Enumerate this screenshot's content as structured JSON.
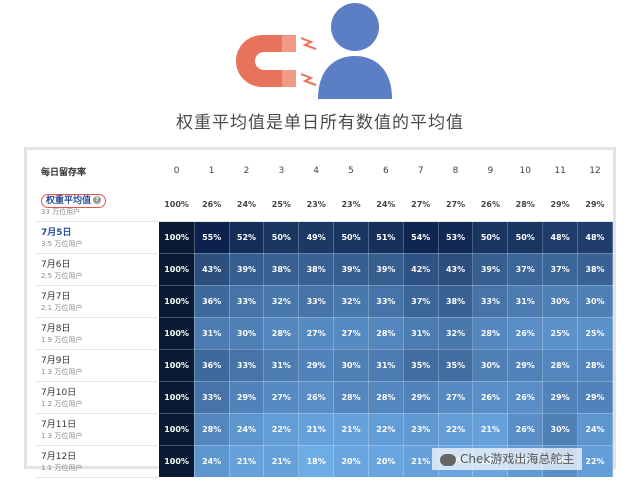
{
  "heading": "权重平均值是单日所有数值的平均值",
  "table": {
    "corner_label": "每日留存率",
    "columns": [
      "0",
      "1",
      "2",
      "3",
      "4",
      "5",
      "6",
      "7",
      "8",
      "9",
      "10",
      "11",
      "12"
    ],
    "average_row": {
      "label": "权重平均值",
      "sublabel": "33 万位用户",
      "values": [
        "100%",
        "26%",
        "24%",
        "25%",
        "23%",
        "23%",
        "24%",
        "27%",
        "27%",
        "26%",
        "28%",
        "29%",
        "29%"
      ]
    },
    "rows": [
      {
        "label": "7月5日",
        "sublabel": "3.5 万位用户",
        "values": [
          "100%",
          "55%",
          "52%",
          "50%",
          "49%",
          "50%",
          "51%",
          "54%",
          "53%",
          "50%",
          "50%",
          "48%",
          "48%"
        ]
      },
      {
        "label": "7月6日",
        "sublabel": "2.5 万位用户",
        "values": [
          "100%",
          "43%",
          "39%",
          "38%",
          "38%",
          "39%",
          "39%",
          "42%",
          "43%",
          "39%",
          "37%",
          "37%",
          "38%"
        ]
      },
      {
        "label": "7月7日",
        "sublabel": "2.1 万位用户",
        "values": [
          "100%",
          "36%",
          "33%",
          "32%",
          "33%",
          "32%",
          "33%",
          "37%",
          "38%",
          "33%",
          "31%",
          "30%",
          "30%"
        ]
      },
      {
        "label": "7月8日",
        "sublabel": "1.9 万位用户",
        "values": [
          "100%",
          "31%",
          "30%",
          "28%",
          "27%",
          "27%",
          "28%",
          "31%",
          "32%",
          "28%",
          "26%",
          "25%",
          "25%"
        ]
      },
      {
        "label": "7月9日",
        "sublabel": "1.3 万位用户",
        "values": [
          "100%",
          "36%",
          "33%",
          "31%",
          "29%",
          "30%",
          "31%",
          "35%",
          "35%",
          "30%",
          "29%",
          "28%",
          "28%"
        ]
      },
      {
        "label": "7月10日",
        "sublabel": "1.2 万位用户",
        "values": [
          "100%",
          "33%",
          "29%",
          "27%",
          "26%",
          "28%",
          "28%",
          "29%",
          "27%",
          "26%",
          "26%",
          "29%",
          "29%"
        ]
      },
      {
        "label": "7月11日",
        "sublabel": "1.3 万位用户",
        "values": [
          "100%",
          "28%",
          "24%",
          "22%",
          "21%",
          "21%",
          "22%",
          "23%",
          "22%",
          "21%",
          "26%",
          "30%",
          "24%"
        ]
      },
      {
        "label": "7月12日",
        "sublabel": "1.1 万位用户",
        "values": [
          "100%",
          "24%",
          "21%",
          "21%",
          "18%",
          "20%",
          "20%",
          "21%",
          "20%",
          "20%",
          "23%",
          "26%",
          "22%"
        ]
      }
    ]
  },
  "icons": [
    "magnet-icon",
    "user-icon",
    "info-icon",
    "wechat-icon"
  ],
  "colors": {
    "accent": "#e8735a",
    "user_icon": "#5b7ec5",
    "header_dark": "#0a1a33",
    "circle_highlight": "#e0574a"
  },
  "watermark": "Chek游戏出海总舵主"
}
